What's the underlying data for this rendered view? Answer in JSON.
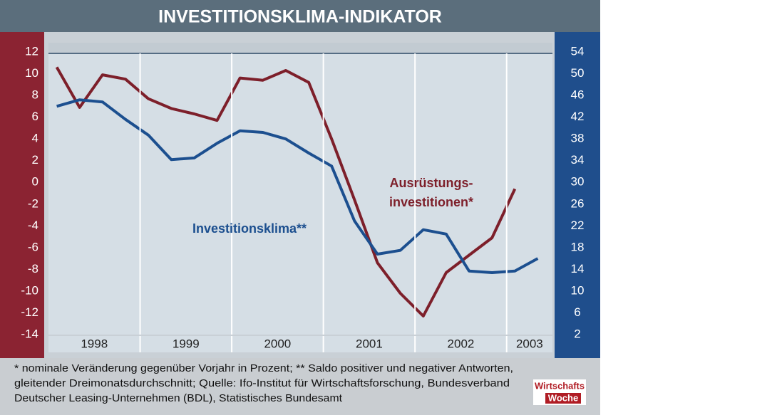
{
  "chart_data": {
    "type": "line",
    "title": "INVESTITIONSKLIMA-INDIKATOR",
    "x": [
      1998.09,
      1998.34,
      1998.59,
      1998.84,
      1999.09,
      1999.34,
      1999.59,
      1999.84,
      2000.09,
      2000.34,
      2000.59,
      2000.84,
      2001.09,
      2001.34,
      2001.59,
      2001.84,
      2002.09,
      2002.34,
      2002.59,
      2002.84,
      2003.09,
      2003.34
    ],
    "xlim": [
      1998,
      2003.5
    ],
    "xticks": [
      1998,
      1999,
      2000,
      2001,
      2002,
      2003
    ],
    "ylim": [
      -14,
      12
    ],
    "yticks": [
      12,
      10,
      8,
      6,
      4,
      2,
      0,
      -2,
      -4,
      -6,
      -8,
      -10,
      -12,
      -14
    ],
    "y2lim": [
      2,
      54
    ],
    "y2ticks": [
      54,
      50,
      46,
      42,
      38,
      34,
      30,
      26,
      22,
      18,
      14,
      10,
      6,
      2
    ],
    "grid": false,
    "series": [
      {
        "name": [
          "Ausrüstungs-",
          "investitionen*"
        ],
        "color": "#7d1f2a",
        "axis": "y",
        "values": [
          10.6,
          6.9,
          9.9,
          9.5,
          7.7,
          6.8,
          6.3,
          5.7,
          9.6,
          9.4,
          10.3,
          9.2,
          4.0,
          -1.6,
          -7.4,
          -10.2,
          -12.3,
          -8.3,
          -6.7,
          -5.1,
          -0.6,
          null
        ]
      },
      {
        "name": "Investitionsklima**",
        "color": "#1c4f8f",
        "axis": "y2",
        "values": [
          44.0,
          45.2,
          44.8,
          41.6,
          38.7,
          34.2,
          34.5,
          37.2,
          39.5,
          39.2,
          38.0,
          35.4,
          33.0,
          22.9,
          16.8,
          17.5,
          21.3,
          20.5,
          13.7,
          13.4,
          13.7,
          16.0
        ]
      }
    ],
    "footnote": [
      "* nominale Veränderung gegenüber Vorjahr in Prozent; ** Saldo positiver und negativer Antworten,",
      "gleitender Dreimonatsdurchschnitt; Quelle: Ifo-Institut für Wirtschaftsforschung, Bundesverband",
      "Deutscher Leasing-Unternehmen (BDL), Statistisches Bundesamt"
    ],
    "logo": [
      "Wirtschafts",
      "Woche"
    ]
  }
}
